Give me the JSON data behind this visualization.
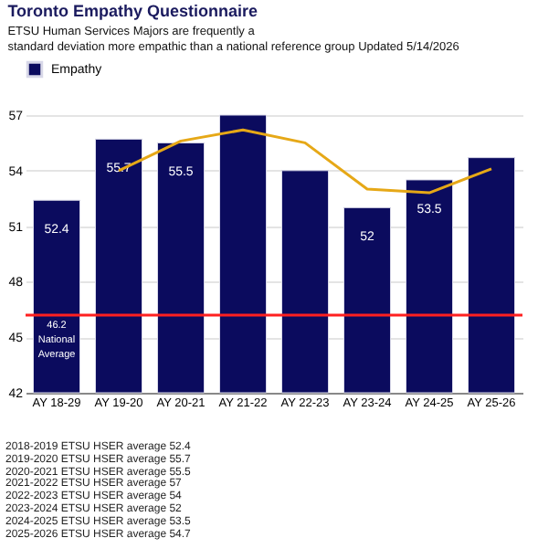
{
  "chart_data": {
    "type": "bar",
    "title": "Toronto Empathy Questionnaire",
    "subtitle": "ETSU Human Services Majors are frequently a standard deviation more empathic than a national reference group Updated 5/14/2026",
    "categories": [
      "AY 18-29",
      "AY 19-20",
      "AY 20-21",
      "AY 21-22",
      "AY 22-23",
      "AY 23-24",
      "AY 24-25",
      "AY 25-26"
    ],
    "series": [
      {
        "name": "Empathy",
        "color": "#0b0b5e",
        "values": [
          52.4,
          55.7,
          55.5,
          57,
          54,
          52,
          53.5,
          54.7
        ],
        "value_labels": [
          "52.4",
          "55.7",
          "55.5",
          null,
          null,
          "52",
          "53.5",
          null
        ]
      },
      {
        "type": "line",
        "color": "#e6a817",
        "values": [
          null,
          54.0,
          55.6,
          56.2,
          55.5,
          53.0,
          52.8,
          54.1
        ]
      }
    ],
    "ylim": [
      42,
      57
    ],
    "yticks": [
      42,
      45,
      48,
      51,
      54,
      57
    ],
    "grid": "y",
    "legend": "top",
    "ref_lines": [
      {
        "axis": "y",
        "value": 46.2,
        "label": "46.2 National Average",
        "color": "#ff2020"
      }
    ],
    "annotations": [
      "2018-2019 ETSU HSER average 52.4",
      "2019-2020 ETSU HSER average 55.7",
      "2020-2021 ETSU HSER average 55.5",
      "2021-2022 ETSU HSER average 57",
      "2022-2023 ETSU HSER average 54",
      "2023-2024 ETSU HSER average 52",
      "2024-2025 ETSU HSER average 53.5",
      "2025-2026 ETSU HSER average 54.7"
    ]
  }
}
